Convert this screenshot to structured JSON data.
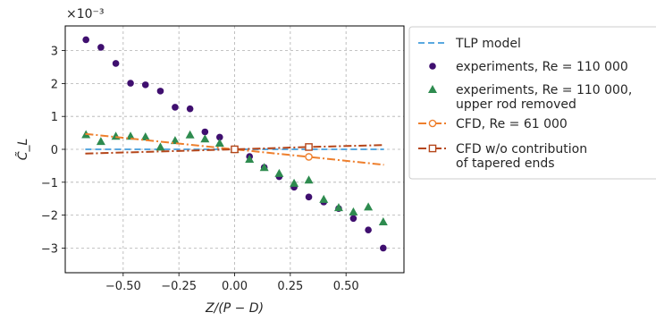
{
  "chart_data": {
    "type": "scatter",
    "xlabel": "Z/(P − D)",
    "ylabel": "C̃_L",
    "y_scale_label": "×10⁻³",
    "xlim": [
      -0.76,
      0.76
    ],
    "ylim": [
      -3.75,
      3.75
    ],
    "xticks": [
      -0.5,
      -0.25,
      0.0,
      0.25,
      0.5
    ],
    "xtick_labels": [
      "−0.50",
      "−0.25",
      "0.00",
      "0.25",
      "0.50"
    ],
    "yticks": [
      -3,
      -2,
      -1,
      0,
      1,
      2,
      3
    ],
    "ytick_labels": [
      "−3",
      "−2",
      "−1",
      "0",
      "1",
      "2",
      "3"
    ],
    "grid": true,
    "legend_placement": "outside-right",
    "series": [
      {
        "name": "TLP model",
        "kind": "line",
        "color": "#5aa9e0",
        "dash": "dashed",
        "x": [
          -0.67,
          0.67
        ],
        "y": [
          0.0,
          0.0
        ]
      },
      {
        "name": "experiments, Re = 110 000",
        "kind": "scatter",
        "marker": "circle",
        "color": "#3f0f6f",
        "x": [
          -0.667,
          -0.6,
          -0.533,
          -0.467,
          -0.4,
          -0.333,
          -0.267,
          -0.2,
          -0.133,
          -0.067,
          0.0,
          0.067,
          0.133,
          0.2,
          0.267,
          0.333,
          0.4,
          0.467,
          0.533,
          0.6,
          0.667
        ],
        "y": [
          3.33,
          3.1,
          2.61,
          2.01,
          1.96,
          1.77,
          1.28,
          1.23,
          0.53,
          0.37,
          0.0,
          -0.22,
          -0.55,
          -0.83,
          -1.15,
          -1.45,
          -1.6,
          -1.8,
          -2.1,
          -2.45,
          -3.0
        ]
      },
      {
        "name": "experiments, Re = 110 000, upper rod removed",
        "kind": "scatter",
        "marker": "triangle",
        "color": "#2e8b4f",
        "x": [
          -0.667,
          -0.6,
          -0.533,
          -0.467,
          -0.4,
          -0.333,
          -0.267,
          -0.2,
          -0.133,
          -0.067,
          0.0,
          0.067,
          0.133,
          0.2,
          0.267,
          0.333,
          0.4,
          0.467,
          0.533,
          0.6,
          0.667
        ],
        "y": [
          0.45,
          0.24,
          0.4,
          0.4,
          0.38,
          0.07,
          0.27,
          0.44,
          0.32,
          0.19,
          0.0,
          -0.3,
          -0.55,
          -0.73,
          -1.03,
          -0.93,
          -1.52,
          -1.77,
          -1.9,
          -1.75,
          -2.2
        ]
      },
      {
        "name": "CFD, Re = 61 000",
        "kind": "line",
        "marker": "open-circle",
        "color": "#ee7f2d",
        "dash": "dashdot",
        "x": [
          -0.67,
          0.0,
          0.333,
          0.67
        ],
        "y": [
          0.47,
          0.0,
          -0.23,
          -0.47
        ],
        "marker_x": [
          0.0,
          0.333
        ],
        "marker_y": [
          0.0,
          -0.23
        ]
      },
      {
        "name": "CFD w/o contribution of tapered ends",
        "kind": "line",
        "marker": "open-square",
        "color": "#b5461a",
        "dash": "dashdot",
        "x": [
          -0.67,
          0.0,
          0.333,
          0.67
        ],
        "y": [
          -0.13,
          0.0,
          0.07,
          0.13
        ],
        "marker_x": [
          0.0,
          0.333
        ],
        "marker_y": [
          0.0,
          0.07
        ]
      }
    ]
  },
  "legend": {
    "entries": [
      {
        "lines": [
          "TLP model"
        ]
      },
      {
        "lines": [
          "experiments, Re = 110 000"
        ]
      },
      {
        "lines": [
          "experiments, Re = 110 000,",
          "upper rod removed"
        ]
      },
      {
        "lines": [
          "CFD, Re = 61 000"
        ]
      },
      {
        "lines": [
          "CFD w/o contribution",
          "of tapered ends"
        ]
      }
    ]
  }
}
